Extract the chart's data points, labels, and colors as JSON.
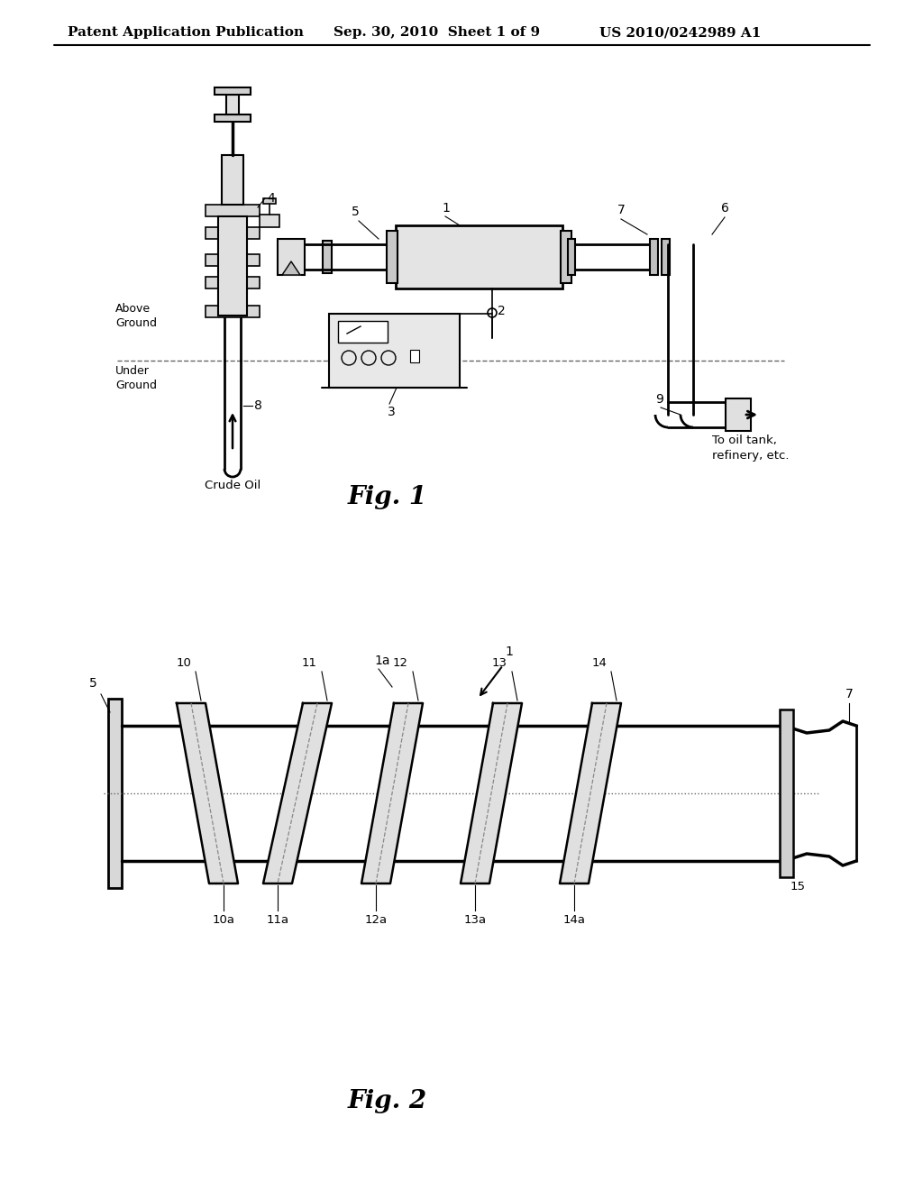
{
  "background_color": "#ffffff",
  "header_left": "Patent Application Publication",
  "header_center": "Sep. 30, 2010  Sheet 1 of 9",
  "header_right": "US 2010/0242989 A1",
  "fig1_caption": "Fig. 1",
  "fig2_caption": "Fig. 2",
  "line_color": "#000000",
  "text_color": "#000000",
  "gray_fill": "#e8e8e8",
  "dark_gray": "#c0c0c0"
}
